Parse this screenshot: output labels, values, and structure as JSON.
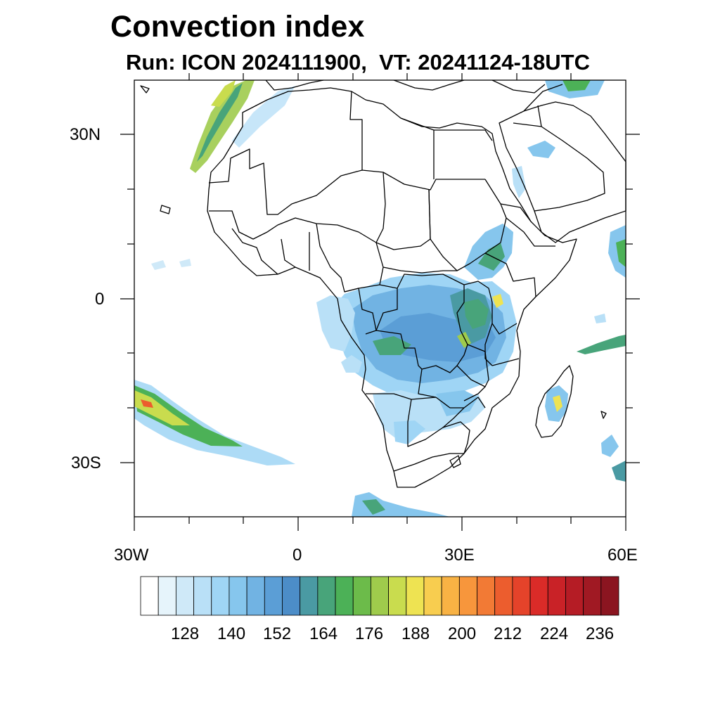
{
  "title": "Convection index",
  "subtitle": "Run: ICON 2024111900,  VT: 20241124-18UTC",
  "lat_labels": [
    "30N",
    "0",
    "30S"
  ],
  "lon_labels": [
    "30W",
    "0",
    "30E",
    "60E"
  ],
  "colorbar": {
    "colors": [
      "#ffffff",
      "#e6f4fb",
      "#cfe9f8",
      "#b9e0f7",
      "#9fd5f5",
      "#86c6ed",
      "#71b3e3",
      "#5b9ed6",
      "#4c8dc8",
      "#4a9aa3",
      "#48a47a",
      "#4cb157",
      "#6cbb4a",
      "#9fcb4c",
      "#c9dc4e",
      "#eee352",
      "#f8cd4f",
      "#f8b244",
      "#f7963c",
      "#f27a35",
      "#ec5d2e",
      "#e5432a",
      "#da2b28",
      "#c92227",
      "#b51c25",
      "#a01923",
      "#8b1520"
    ],
    "tick_labels": [
      "128",
      "140",
      "152",
      "164",
      "176",
      "188",
      "200",
      "212",
      "224",
      "236"
    ]
  }
}
